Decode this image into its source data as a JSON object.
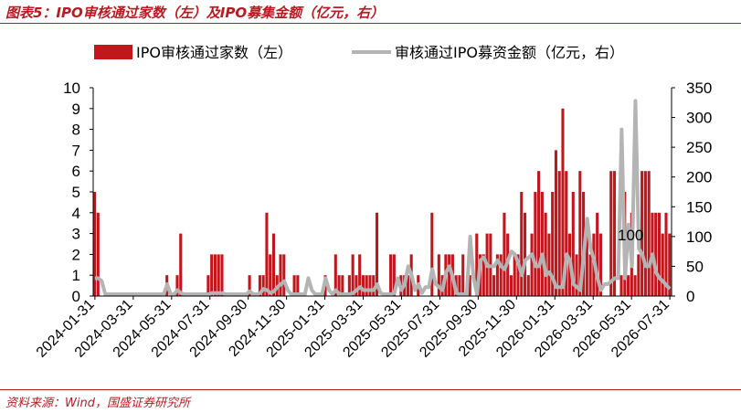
{
  "page": {
    "title": "图表5：IPO审核通过家数（左）及IPO募集金额（亿元，右）",
    "source": "资料来源：Wind，国盛证券研究所"
  },
  "colors": {
    "bars": "#c0161c",
    "line": "#b4b4b4",
    "accent": "#b81c22"
  },
  "chart_data": {
    "type": "bar",
    "title": "图表5：IPO审核通过家数（左）及IPO募集金额（亿元，右）",
    "legend_position": "top",
    "grid": false,
    "y_left": {
      "ylim": [
        0,
        10
      ],
      "ticks": [
        "0",
        "1",
        "2",
        "3",
        "4",
        "5",
        "6",
        "7",
        "8",
        "9",
        "10"
      ]
    },
    "y_right": {
      "ylim": [
        0,
        350
      ],
      "ticks": [
        "0",
        "50",
        "100",
        "150",
        "200",
        "250",
        "300",
        "350"
      ]
    },
    "x_tick_labels": [
      "2024-01-31",
      "2024-03-31",
      "2024-05-31",
      "2024-07-31",
      "2024-09-30",
      "2024-11-30",
      "2025-01-31",
      "2025-03-31",
      "2025-05-31",
      "2025-07-31",
      "2025-09-30",
      "2025-11-30",
      "2026-01-31",
      "2026-03-31",
      "2026-05-31",
      "2026-07-31"
    ],
    "annotation": "100",
    "series": [
      {
        "name": "IPO审核通过家数（左）",
        "type": "bar",
        "axis": "left",
        "values": [
          5,
          4,
          0,
          0,
          0,
          0,
          0,
          0,
          0,
          0,
          0,
          0,
          0,
          0,
          0,
          0,
          0,
          0,
          0,
          0,
          0,
          1,
          0,
          0,
          1,
          3,
          0,
          0,
          0,
          0,
          0,
          0,
          0,
          1,
          2,
          2,
          2,
          2,
          0,
          0,
          0,
          0,
          0,
          0,
          0,
          1,
          0,
          0,
          1,
          1,
          4,
          2,
          3,
          1,
          2,
          2,
          0,
          0,
          1,
          1,
          0,
          0,
          0,
          0,
          0,
          0,
          0,
          1,
          0,
          0,
          2,
          1,
          1,
          0,
          1,
          2,
          1,
          2,
          1,
          1,
          1,
          1,
          4,
          0,
          0,
          0,
          2,
          2,
          0,
          1,
          1,
          1,
          2,
          0,
          1,
          0,
          0,
          0,
          4,
          0,
          2,
          1,
          2,
          2,
          2,
          1,
          1,
          2,
          0,
          1,
          0,
          3,
          2,
          2,
          3,
          3,
          1,
          2,
          2,
          4,
          3,
          1,
          2,
          2,
          5,
          4,
          1,
          3,
          5,
          6,
          5,
          4,
          3,
          5,
          7,
          6,
          9,
          6,
          3,
          5,
          2,
          6,
          5,
          3,
          2,
          3,
          4,
          3,
          0,
          0,
          6,
          6,
          0,
          1,
          5,
          1,
          4,
          1,
          2,
          6,
          6,
          6,
          4,
          4,
          4,
          3,
          4,
          3
        ]
      },
      {
        "name": "审核通过IPO募资金额（亿元，右）",
        "type": "line",
        "axis": "right",
        "values": [
          30,
          30,
          25,
          3,
          3,
          3,
          3,
          3,
          3,
          3,
          3,
          3,
          3,
          3,
          3,
          3,
          3,
          3,
          3,
          3,
          3,
          20,
          3,
          3,
          10,
          5,
          3,
          3,
          3,
          3,
          3,
          3,
          3,
          3,
          5,
          5,
          5,
          5,
          3,
          3,
          3,
          3,
          3,
          3,
          3,
          8,
          3,
          3,
          5,
          12,
          10,
          5,
          8,
          15,
          20,
          25,
          10,
          3,
          3,
          3,
          3,
          3,
          30,
          10,
          3,
          3,
          3,
          30,
          10,
          3,
          10,
          3,
          3,
          3,
          3,
          5,
          10,
          15,
          10,
          10,
          10,
          10,
          20,
          5,
          3,
          3,
          3,
          5,
          30,
          10,
          20,
          50,
          35,
          10,
          20,
          5,
          15,
          15,
          45,
          20,
          15,
          10,
          40,
          50,
          30,
          5,
          3,
          3,
          3,
          100,
          30,
          3,
          60,
          65,
          50,
          50,
          50,
          60,
          50,
          45,
          60,
          75,
          70,
          55,
          35,
          60,
          65,
          70,
          50,
          50,
          70,
          35,
          40,
          30,
          15,
          15,
          15,
          70,
          60,
          20,
          15,
          10,
          70,
          130,
          80,
          60,
          30,
          10,
          20,
          20,
          25,
          30,
          30,
          280,
          30,
          120,
          50,
          328,
          80,
          70,
          50,
          50,
          70,
          40,
          30,
          25,
          18,
          12
        ]
      }
    ]
  }
}
